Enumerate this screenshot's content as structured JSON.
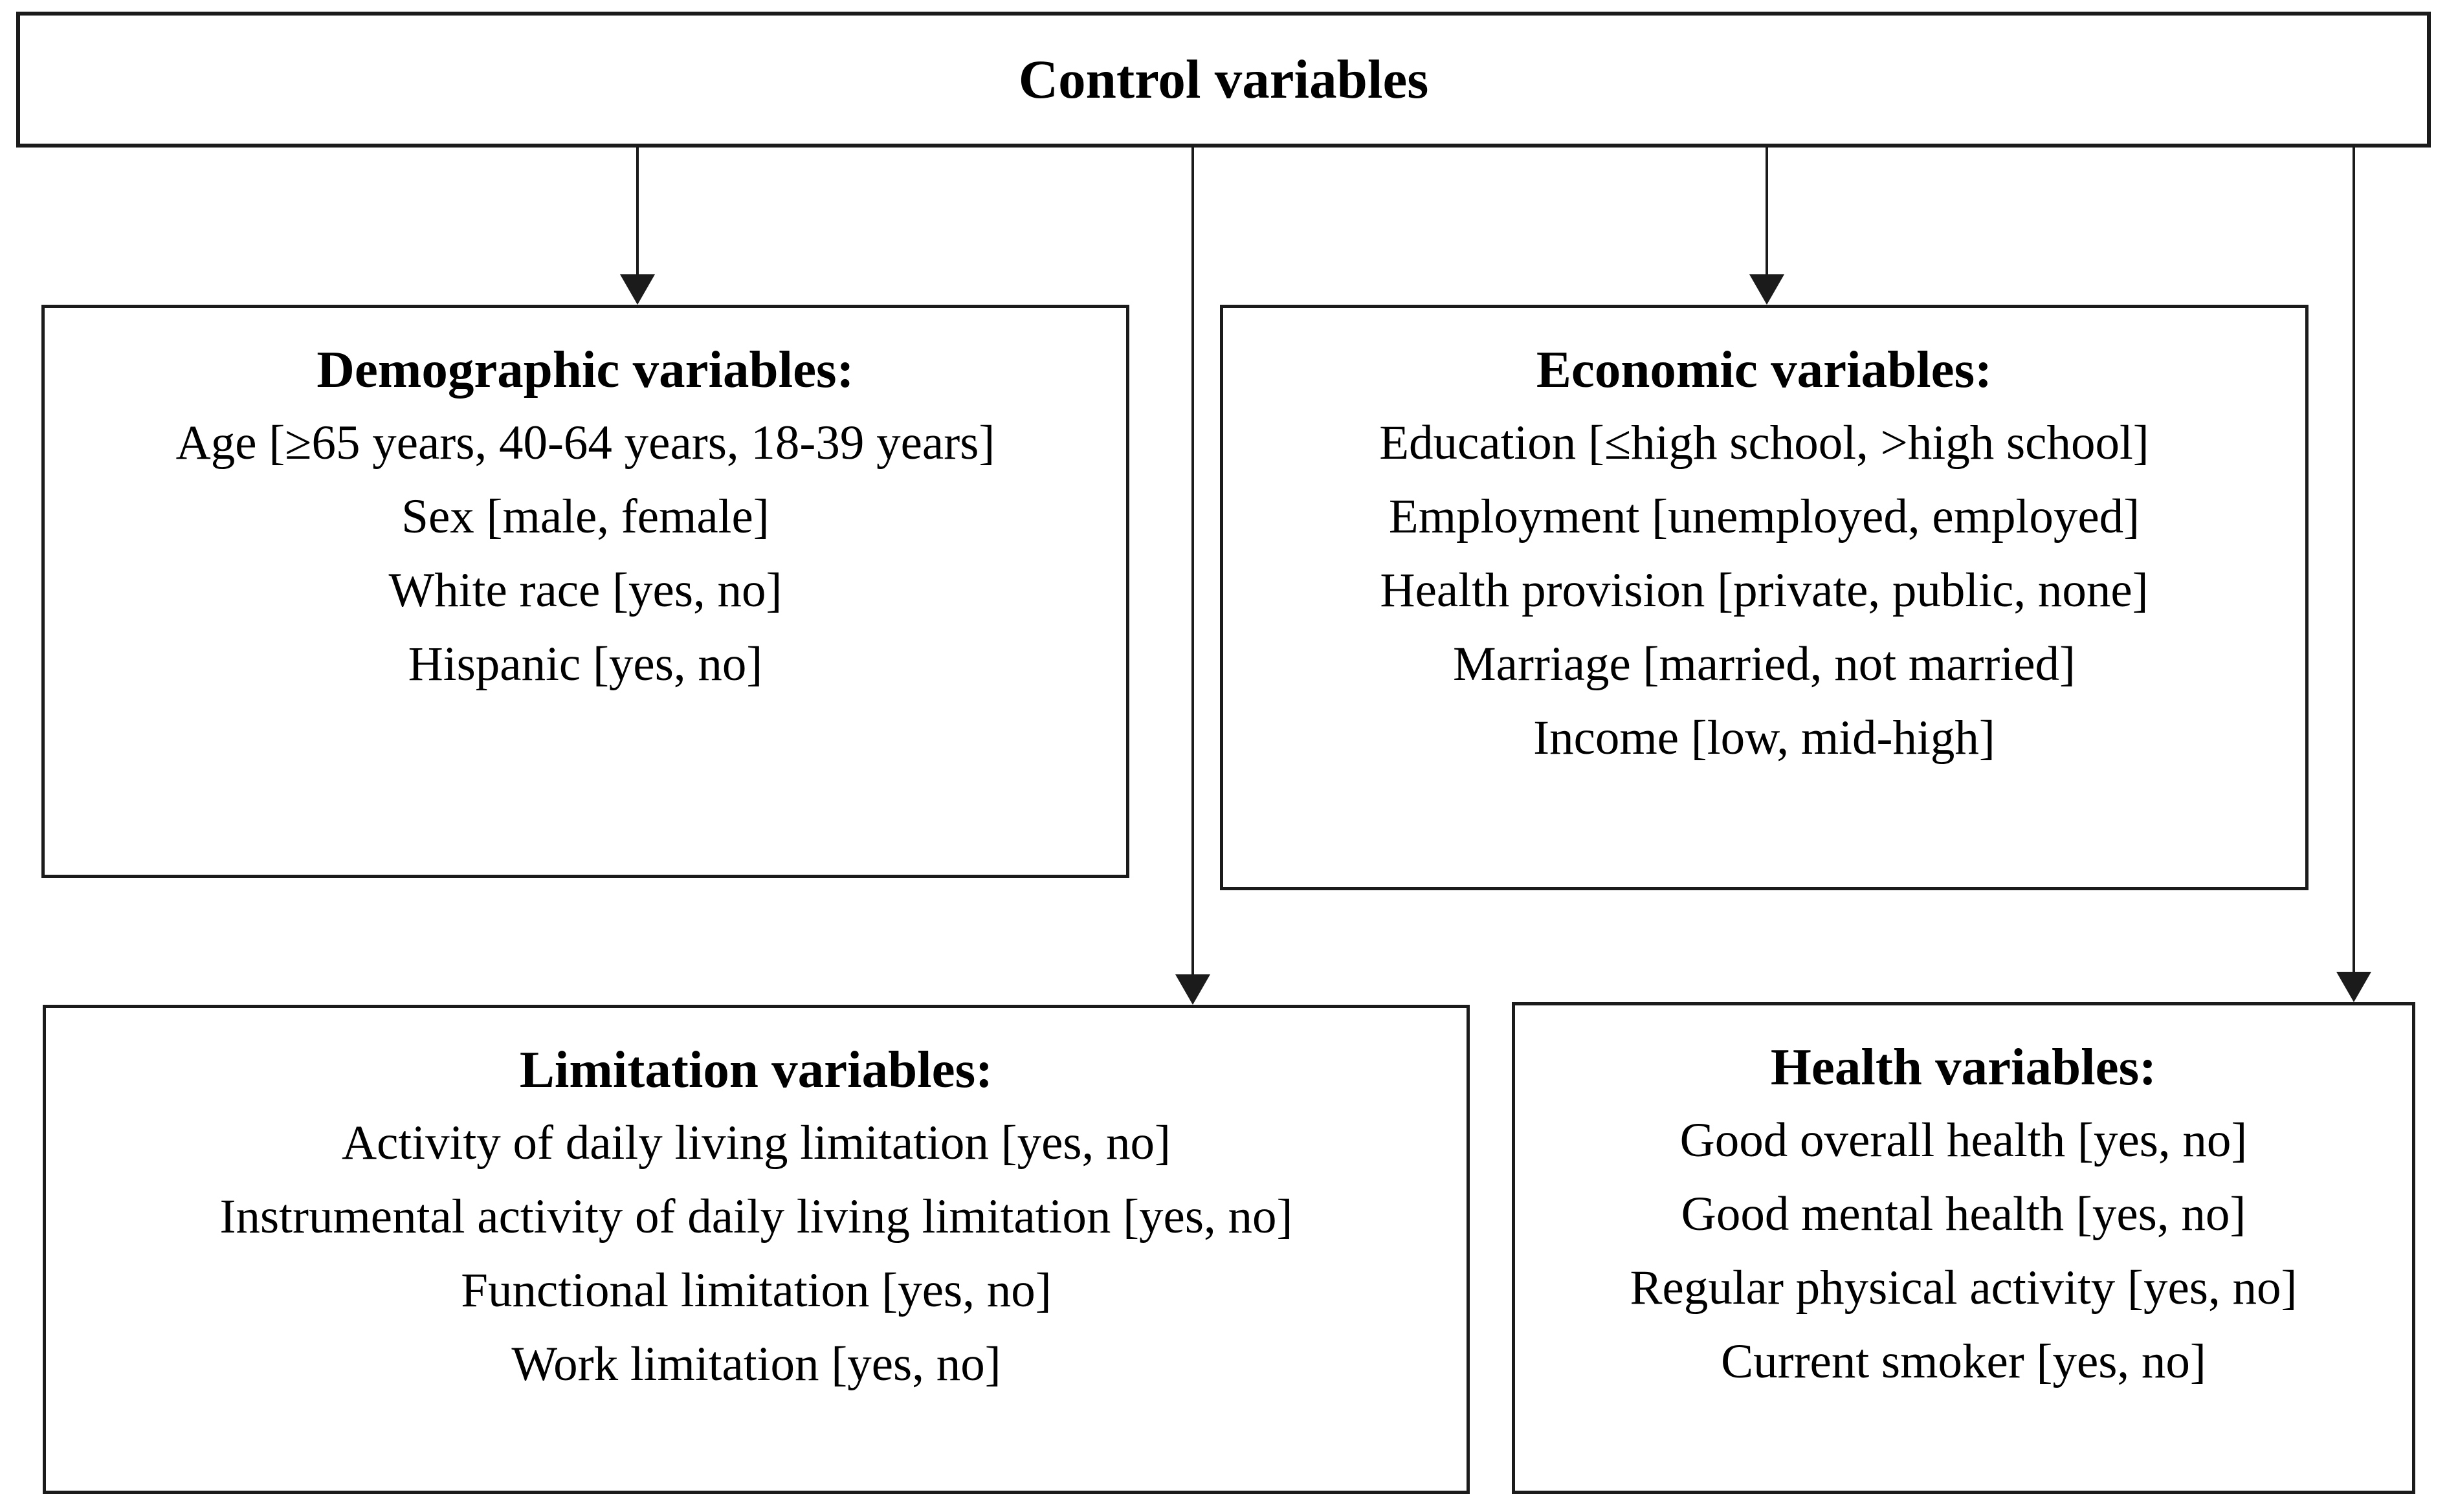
{
  "diagram": {
    "title": "Control variables flow diagram",
    "colors": {
      "line": "#1b1b1b",
      "background": "#ffffff",
      "text": "#000000"
    },
    "control_box": {
      "title": "Control variables"
    },
    "boxes": [
      {
        "id": "demographic",
        "title": "Demographic variables:",
        "items": [
          "Age [≥65 years, 40-64 years, 18-39 years]",
          "Sex [male, female]",
          "White race [yes, no]",
          "Hispanic [yes, no]"
        ]
      },
      {
        "id": "economic",
        "title": "Economic variables:",
        "items": [
          "Education [≤high school, >high school]",
          "Employment [unemployed, employed]",
          "Health provision [private, public, none]",
          "Marriage [married, not married]",
          "Income [low, mid-high]"
        ]
      },
      {
        "id": "limitation",
        "title": "Limitation variables:",
        "items": [
          "Activity of daily living limitation [yes, no]",
          "Instrumental activity of daily living limitation [yes, no]",
          "Functional limitation [yes, no]",
          "Work limitation [yes, no]"
        ]
      },
      {
        "id": "health",
        "title": "Health variables:",
        "items": [
          "Good overall health [yes, no]",
          "Good mental health [yes, no]",
          "Regular physical activity [yes, no]",
          "Current smoker [yes, no]"
        ]
      }
    ],
    "arrows": [
      {
        "from": "Control variables",
        "to": "Demographic variables"
      },
      {
        "from": "Control variables",
        "to": "Limitation variables"
      },
      {
        "from": "Control variables",
        "to": "Economic variables"
      },
      {
        "from": "Control variables",
        "to": "Health variables"
      }
    ]
  }
}
